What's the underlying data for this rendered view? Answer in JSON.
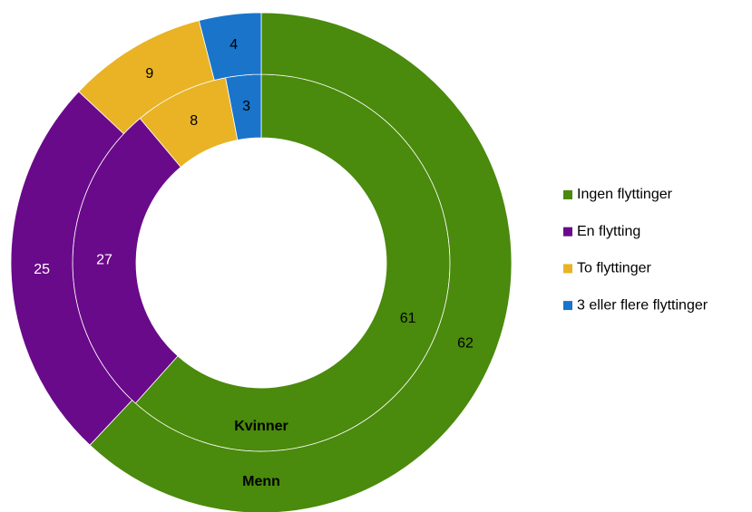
{
  "chart_data": {
    "type": "donut",
    "categories": [
      "Ingen flyttinger",
      "En flytting",
      "To flyttinger",
      "3 eller flere flyttinger"
    ],
    "colors": [
      "#4a8a0c",
      "#690a8a",
      "#e9b325",
      "#1a74c9"
    ],
    "label_colors": [
      "#000000",
      "#ffffff",
      "#000000",
      "#000000"
    ],
    "series": [
      {
        "name": "Kvinner",
        "values": [
          61,
          27,
          8,
          3
        ]
      },
      {
        "name": "Menn",
        "values": [
          62,
          25,
          9,
          4
        ]
      }
    ],
    "legend": "right"
  }
}
